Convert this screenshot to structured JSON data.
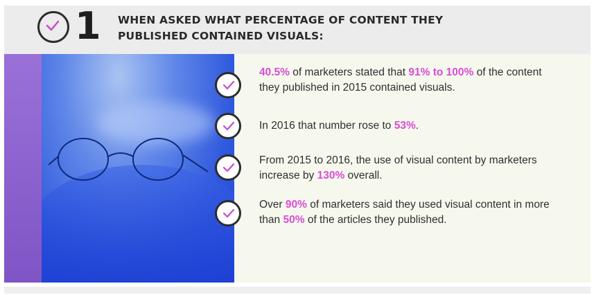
{
  "header": {
    "number": "1",
    "title_line1": "WHEN ASKED WHAT PERCENTAGE OF CONTENT THEY",
    "title_line2": "PUBLISHED CONTAINED VISUALS:"
  },
  "colors": {
    "highlight": "#d94bd6",
    "check_accent": "#c54bd0",
    "band": "#8a5fcd",
    "photo_blue": "#2f59dd"
  },
  "items": [
    {
      "icon": "check-circle-icon",
      "parts": [
        {
          "t": "40.5%",
          "hl": true
        },
        {
          "t": " of marketers stated that ",
          "hl": false
        },
        {
          "t": "91% to 100%",
          "hl": true
        },
        {
          "t": " of the content they published in 2015 contained visuals.",
          "hl": false
        }
      ]
    },
    {
      "icon": "check-circle-icon",
      "parts": [
        {
          "t": "In 2016 that number rose to ",
          "hl": false
        },
        {
          "t": "53%",
          "hl": true
        },
        {
          "t": ".",
          "hl": false
        }
      ]
    },
    {
      "icon": "check-circle-icon",
      "parts": [
        {
          "t": "From 2015 to 2016, the use of visual content by marketers increase by ",
          "hl": false
        },
        {
          "t": "130%",
          "hl": true
        },
        {
          "t": " overall.",
          "hl": false
        }
      ]
    },
    {
      "icon": "check-circle-icon",
      "parts": [
        {
          "t": "Over ",
          "hl": false
        },
        {
          "t": "90%",
          "hl": true
        },
        {
          "t": " of marketers said they used visual content in more than ",
          "hl": false
        },
        {
          "t": "50%",
          "hl": true
        },
        {
          "t": " of the articles they published.",
          "hl": false
        }
      ]
    }
  ]
}
